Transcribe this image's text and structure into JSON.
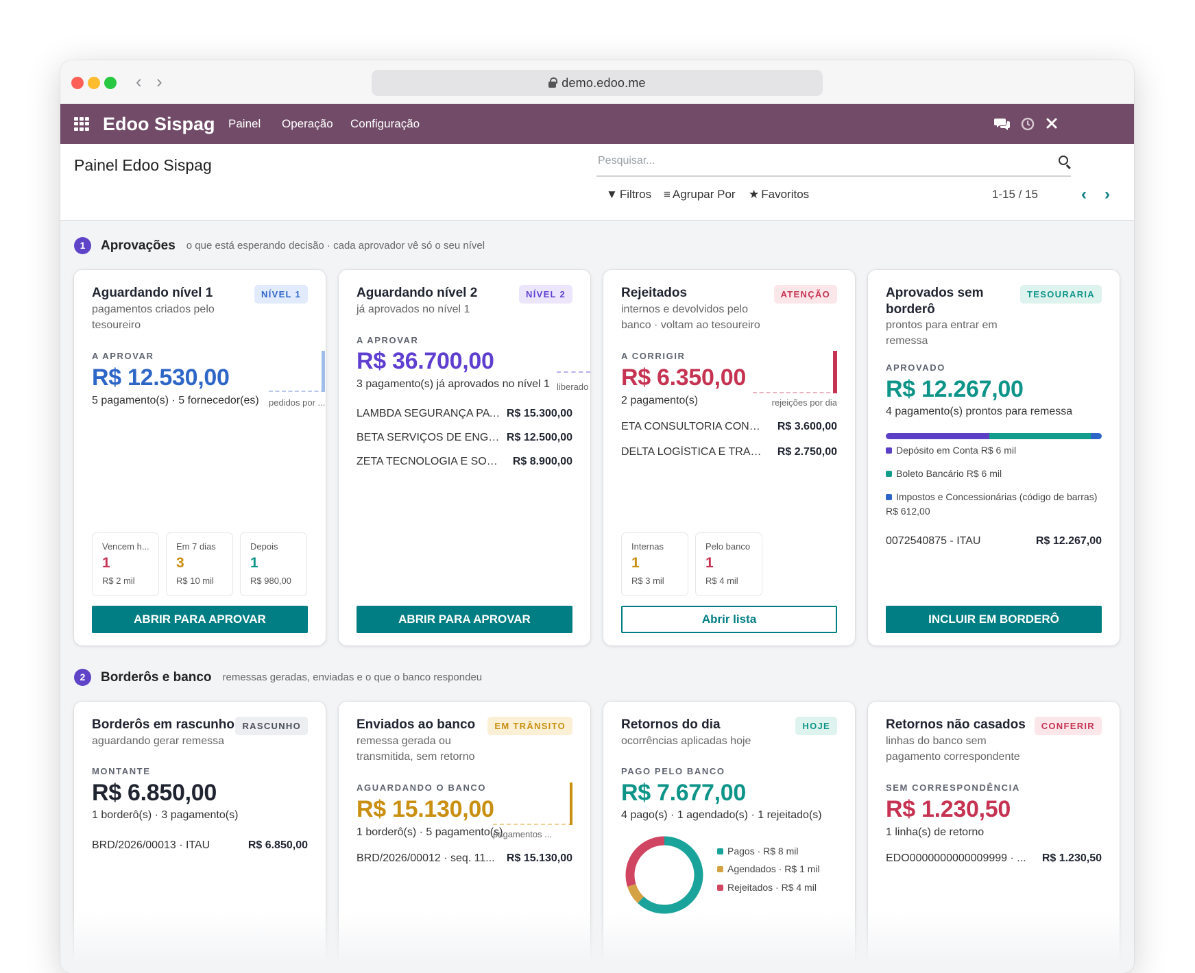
{
  "browser": {
    "url": "demo.edoo.me"
  },
  "topbar": {
    "app": "Edoo Sispag",
    "menu": [
      "Painel",
      "Operação",
      "Configuração"
    ]
  },
  "control": {
    "title": "Painel Edoo Sispag",
    "search_placeholder": "Pesquisar...",
    "filters": "Filtros",
    "groupby": "Agrupar Por",
    "favorites": "Favoritos",
    "pager": "1-15 / 15"
  },
  "sec1": {
    "num": "1",
    "title": "Aprovações",
    "sub": "o que está esperando decisão · cada aprovador vê só o seu nível"
  },
  "sec2": {
    "num": "2",
    "title": "Borderôs e banco",
    "sub": "remessas geradas, enviadas e o que o banco respondeu"
  },
  "colors": {
    "purple": "#714b67",
    "teal": "#017e84",
    "blue": "#2e66c8",
    "violet": "#5f3fd0",
    "red": "#c63352",
    "green": "#0e9488",
    "orange": "#c98f10"
  },
  "c1": {
    "title": "Aguardando nível 1",
    "sub1": "pagamentos criados pelo",
    "sub2": "tesoureiro",
    "badge": "NÍVEL 1",
    "label": "A APROVAR",
    "value": "R$ 12.530,00",
    "caption": "5 pagamento(s) · 5 fornecedor(es)",
    "spark": "pedidos por ...",
    "minis": [
      {
        "l": "Vencem h...",
        "n": "1",
        "v": "R$ 2 mil"
      },
      {
        "l": "Em 7 dias",
        "n": "3",
        "v": "R$ 10 mil"
      },
      {
        "l": "Depois",
        "n": "1",
        "v": "R$ 980,00"
      }
    ],
    "button": "ABRIR PARA APROVAR"
  },
  "c2": {
    "title": "Aguardando nível 2",
    "sub1": "já aprovados no nível 1",
    "badge": "NÍVEL 2",
    "label": "A APROVAR",
    "value": "R$ 36.700,00",
    "caption": "3 pagamento(s) já aprovados no nível 1",
    "spark": "liberado",
    "rows": [
      {
        "n": "LAMBDA SEGURANÇA PAT...",
        "v": "R$ 15.300,00"
      },
      {
        "n": "BETA SERVIÇOS DE ENGEN...",
        "v": "R$ 12.500,00"
      },
      {
        "n": "ZETA TECNOLOGIA E SOFT...",
        "v": "R$ 8.900,00"
      }
    ],
    "button": "ABRIR PARA APROVAR"
  },
  "c3": {
    "title": "Rejeitados",
    "sub1": "internos e devolvidos pelo",
    "sub2": "banco · voltam ao tesoureiro",
    "badge": "ATENÇÃO",
    "label": "A CORRIGIR",
    "value": "R$ 6.350,00",
    "caption": "2 pagamento(s)",
    "spark": "rejeições por dia",
    "rows": [
      {
        "n": "ETA CONSULTORIA CONTÁB...",
        "v": "R$ 3.600,00"
      },
      {
        "n": "DELTA LOGÍSTICA E TRANSP...",
        "v": "R$ 2.750,00"
      }
    ],
    "minis": [
      {
        "l": "Internas",
        "n": "1",
        "v": "R$ 3 mil"
      },
      {
        "l": "Pelo banco",
        "n": "1",
        "v": "R$ 4 mil"
      }
    ],
    "button": "Abrir lista"
  },
  "c4": {
    "title1": "Aprovados sem",
    "title2": "borderô",
    "sub1": "prontos para entrar em",
    "sub2": "remessa",
    "badge": "TESOURARIA",
    "label": "APROVADO",
    "value": "R$ 12.267,00",
    "caption": "4 pagamento(s) prontos para remessa",
    "stack": [
      {
        "share": 0.48,
        "color": "#5b3fc4"
      },
      {
        "share": 0.47,
        "color": "#149c8c"
      },
      {
        "share": 0.05,
        "color": "#2e66c8"
      }
    ],
    "legend": [
      "Depósito em Conta R$ 6 mil",
      "Boleto Bancário R$ 6 mil",
      "Impostos e Concessionárias (código de barras)",
      "R$ 612,00"
    ],
    "row": {
      "n": "0072540875 - ITAU",
      "v": "R$ 12.267,00"
    },
    "button": "INCLUIR EM BORDERÔ"
  },
  "c5": {
    "title": "Borderôs em rascunho",
    "sub1": "aguardando gerar remessa",
    "badge": "RASCUNHO",
    "label": "MONTANTE",
    "value": "R$ 6.850,00",
    "caption": "1 borderô(s) · 3 pagamento(s)",
    "row": {
      "n": "BRD/2026/00013 · ITAU",
      "v": "R$ 6.850,00"
    }
  },
  "c6": {
    "title": "Enviados ao banco",
    "sub1": "remessa gerada ou",
    "sub2": "transmitida, sem retorno",
    "badge": "EM TRÂNSITO",
    "label": "AGUARDANDO O BANCO",
    "value": "R$ 15.130,00",
    "caption": "1 borderô(s) · 5 pagamento(s)",
    "spark": "pagamentos ...",
    "row": {
      "n": "BRD/2026/00012 · seq. 11...",
      "v": "R$ 15.130,00"
    }
  },
  "c7": {
    "title": "Retornos do dia",
    "sub1": "ocorrências aplicadas hoje",
    "badge": "HOJE",
    "label": "PAGO PELO BANCO",
    "value": "R$ 7.677,00",
    "caption": "4 pago(s) · 1 agendado(s) · 1 rejeitado(s)",
    "donut": [
      {
        "label": "Pagos · R$ 8 mil",
        "share": 0.62,
        "color": "#1aa39a"
      },
      {
        "label": "Agendados · R$ 1 mil",
        "share": 0.08,
        "color": "#d4a244"
      },
      {
        "label": "Rejeitados · R$ 4 mil",
        "share": 0.3,
        "color": "#d04561"
      }
    ]
  },
  "c8": {
    "title": "Retornos não casados",
    "sub1": "linhas do banco sem",
    "sub2": "pagamento correspondente",
    "badge": "CONFERIR",
    "label": "SEM CORRESPONDÊNCIA",
    "value": "R$ 1.230,50",
    "caption": "1 linha(s) de retorno",
    "row": {
      "n": "EDO0000000000009999 · ...",
      "v": "R$ 1.230,50"
    }
  }
}
